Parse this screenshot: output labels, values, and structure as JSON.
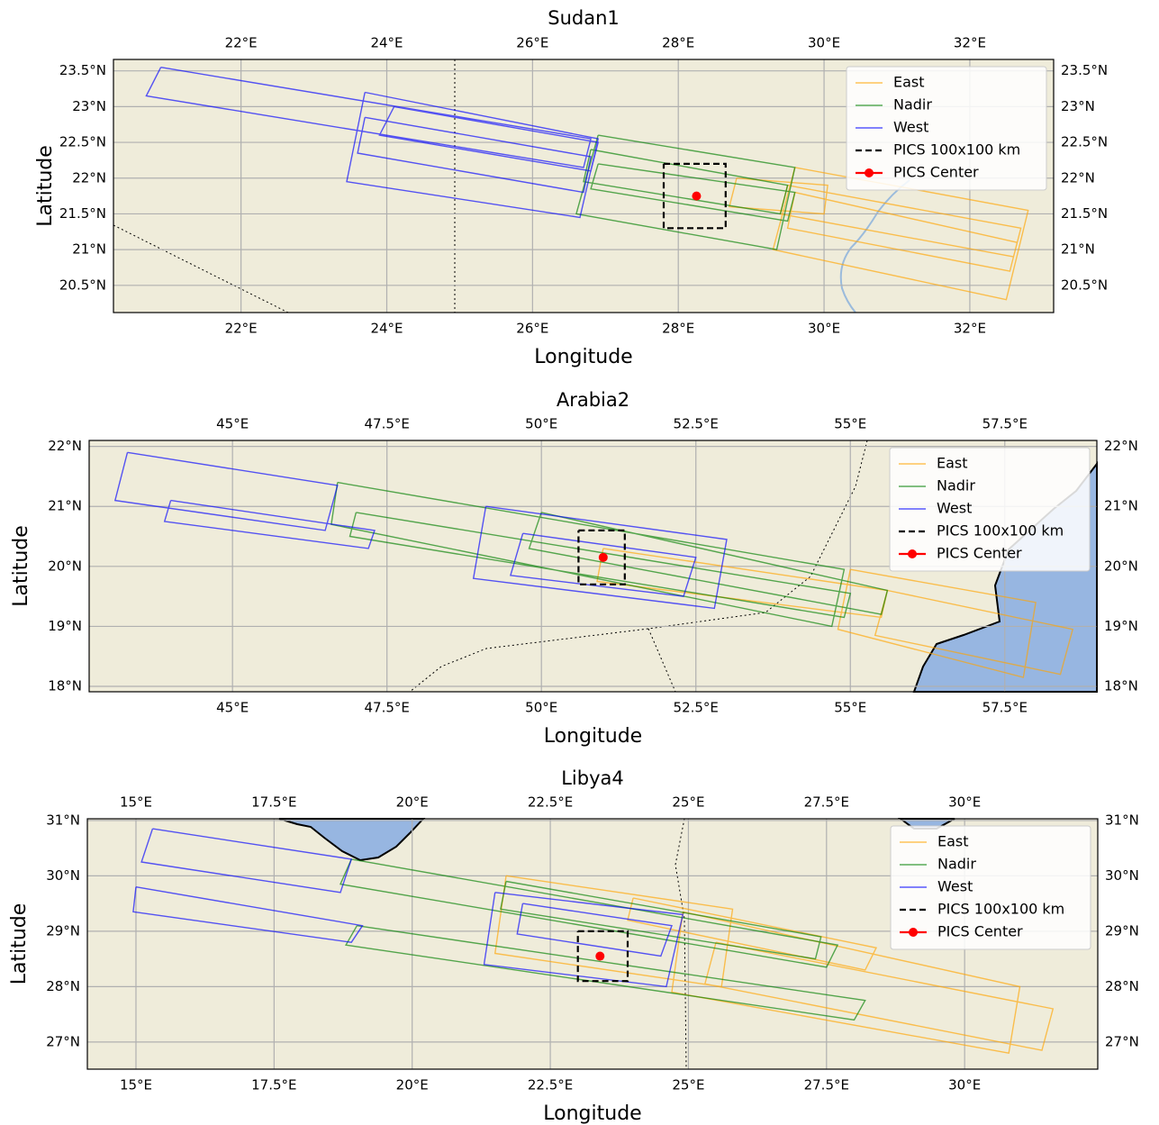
{
  "chart_data": [
    {
      "type": "map",
      "title": "Sudan1",
      "xlabel": "Longitude",
      "ylabel": "Latitude",
      "xlim": [
        20.25,
        33.15
      ],
      "ylim": [
        20.12,
        23.66
      ],
      "xticks": [
        {
          "value": 22,
          "label": "22°E"
        },
        {
          "value": 24,
          "label": "24°E"
        },
        {
          "value": 26,
          "label": "26°E"
        },
        {
          "value": 28,
          "label": "28°E"
        },
        {
          "value": 30,
          "label": "30°E"
        },
        {
          "value": 32,
          "label": "32°E"
        }
      ],
      "yticks": [
        {
          "value": 20.5,
          "label": "20.5°N"
        },
        {
          "value": 21,
          "label": "21°N"
        },
        {
          "value": 21.5,
          "label": "21.5°N"
        },
        {
          "value": 22,
          "label": "22°N"
        },
        {
          "value": 22.5,
          "label": "22.5°N"
        },
        {
          "value": 23,
          "label": "23°N"
        },
        {
          "value": 23.5,
          "label": "23.5°N"
        }
      ],
      "grid": true,
      "legend": "upper right",
      "series": [
        {
          "name": "East",
          "color": "orange",
          "x": [
            29.6,
            32.8,
            32.5,
            29.3,
            29.6,
            null,
            29.5,
            32.7,
            32.6,
            29.4,
            29.5,
            null,
            29.6,
            32.65,
            32.55,
            29.5,
            29.6,
            null,
            28.8,
            30.05,
            30.0,
            28.7,
            28.8
          ],
          "y": [
            22.15,
            21.55,
            20.3,
            21.0,
            22.15,
            null,
            21.9,
            21.3,
            20.9,
            21.5,
            21.9,
            null,
            21.8,
            21.1,
            20.7,
            21.3,
            21.8,
            null,
            22.0,
            21.9,
            21.5,
            21.6,
            22.0
          ]
        },
        {
          "name": "Nadir",
          "color": "green",
          "x": [
            26.9,
            29.6,
            29.35,
            26.6,
            26.9,
            null,
            26.8,
            29.5,
            29.4,
            26.7,
            26.8,
            null,
            26.9,
            29.6,
            29.5,
            26.8,
            26.9
          ],
          "y": [
            22.6,
            22.15,
            21.0,
            21.5,
            22.6,
            null,
            22.4,
            21.9,
            21.5,
            21.95,
            22.4,
            null,
            22.2,
            21.8,
            21.4,
            21.85,
            22.2
          ]
        },
        {
          "name": "West",
          "color": "blue",
          "x": [
            20.9,
            26.8,
            26.7,
            20.7,
            20.9,
            null,
            23.7,
            26.9,
            26.65,
            23.45,
            23.7,
            null,
            23.7,
            26.8,
            26.7,
            23.6,
            23.7,
            null,
            24.1,
            26.9,
            26.8,
            23.9,
            24.1
          ],
          "y": [
            23.55,
            22.55,
            22.15,
            23.15,
            23.55,
            null,
            23.2,
            22.55,
            21.45,
            21.95,
            23.2,
            null,
            22.85,
            22.3,
            21.8,
            22.35,
            22.85,
            null,
            23.0,
            22.5,
            22.1,
            22.6,
            23.0
          ]
        },
        {
          "name": "PICS 100x100 km",
          "color": "black",
          "linestyle": "dashed",
          "x": [
            27.8,
            28.65,
            28.65,
            27.8,
            27.8
          ],
          "y": [
            22.2,
            22.2,
            21.3,
            21.3,
            22.2
          ]
        },
        {
          "name": "PICS Center",
          "color": "red",
          "marker": "o",
          "x": [
            28.25
          ],
          "y": [
            21.75
          ]
        }
      ]
    },
    {
      "type": "map",
      "title": "Arabia2",
      "xlabel": "Longitude",
      "ylabel": "Latitude",
      "xlim": [
        42.68,
        58.99
      ],
      "ylim": [
        17.91,
        22.1
      ],
      "xticks": [
        {
          "value": 45,
          "label": "45°E"
        },
        {
          "value": 47.5,
          "label": "47.5°E"
        },
        {
          "value": 50,
          "label": "50°E"
        },
        {
          "value": 52.5,
          "label": "52.5°E"
        },
        {
          "value": 55,
          "label": "55°E"
        },
        {
          "value": 57.5,
          "label": "57.5°E"
        }
      ],
      "yticks": [
        {
          "value": 18,
          "label": "18°N"
        },
        {
          "value": 19,
          "label": "19°N"
        },
        {
          "value": 20,
          "label": "20°N"
        },
        {
          "value": 21,
          "label": "21°N"
        },
        {
          "value": 22,
          "label": "22°N"
        }
      ],
      "grid": true,
      "legend": "upper right",
      "series": [
        {
          "name": "East",
          "color": "orange",
          "x": [
            55.0,
            58.0,
            57.8,
            54.8,
            55.0,
            null,
            55.6,
            58.6,
            58.4,
            55.4,
            55.6,
            null,
            51.0,
            55.6,
            55.5,
            50.9,
            51.0
          ],
          "y": [
            19.95,
            19.4,
            18.15,
            18.95,
            19.95,
            null,
            19.6,
            18.95,
            18.2,
            18.85,
            19.6,
            null,
            20.3,
            19.6,
            19.15,
            19.75,
            20.3
          ]
        },
        {
          "name": "Nadir",
          "color": "green",
          "x": [
            46.7,
            54.9,
            54.7,
            46.6,
            46.7,
            null,
            50.0,
            55.6,
            55.5,
            49.8,
            50.0,
            null,
            47.0,
            55.0,
            54.9,
            46.9,
            47.0
          ],
          "y": [
            21.4,
            19.95,
            19.0,
            20.7,
            21.4,
            null,
            20.9,
            19.6,
            19.2,
            20.3,
            20.9,
            null,
            20.9,
            19.55,
            19.15,
            20.5,
            20.9
          ]
        },
        {
          "name": "West",
          "color": "blue",
          "x": [
            43.3,
            46.7,
            46.5,
            43.1,
            43.3,
            null,
            44.0,
            47.3,
            47.2,
            43.9,
            44.0,
            null,
            49.1,
            53.0,
            52.8,
            48.9,
            49.1,
            null,
            49.7,
            52.5,
            52.3,
            49.5,
            49.7
          ],
          "y": [
            21.9,
            21.35,
            20.6,
            21.1,
            21.9,
            null,
            21.1,
            20.6,
            20.3,
            20.75,
            21.1,
            null,
            21.0,
            20.45,
            19.3,
            19.8,
            21.0,
            null,
            20.55,
            20.15,
            19.5,
            19.85,
            20.55
          ]
        },
        {
          "name": "PICS 100x100 km",
          "color": "black",
          "linestyle": "dashed",
          "x": [
            50.6,
            51.35,
            51.35,
            50.6,
            50.6
          ],
          "y": [
            20.6,
            20.6,
            19.7,
            19.7,
            20.6
          ]
        },
        {
          "name": "PICS Center",
          "color": "red",
          "marker": "o",
          "x": [
            51.0
          ],
          "y": [
            20.15
          ]
        }
      ]
    },
    {
      "type": "map",
      "title": "Libya4",
      "xlabel": "Longitude",
      "ylabel": "Latitude",
      "xlim": [
        14.12,
        32.41
      ],
      "ylim": [
        26.51,
        31.03
      ],
      "xticks": [
        {
          "value": 15,
          "label": "15°E"
        },
        {
          "value": 17.5,
          "label": "17.5°E"
        },
        {
          "value": 20,
          "label": "20°E"
        },
        {
          "value": 22.5,
          "label": "22.5°E"
        },
        {
          "value": 25,
          "label": "25°E"
        },
        {
          "value": 27.5,
          "label": "27.5°E"
        },
        {
          "value": 30,
          "label": "30°E"
        }
      ],
      "yticks": [
        {
          "value": 27,
          "label": "27°N"
        },
        {
          "value": 28,
          "label": "28°N"
        },
        {
          "value": 29,
          "label": "29°N"
        },
        {
          "value": 30,
          "label": "30°N"
        },
        {
          "value": 31,
          "label": "31°N"
        }
      ],
      "grid": true,
      "legend": "upper right",
      "series": [
        {
          "name": "East",
          "color": "orange",
          "x": [
            24.9,
            31.0,
            30.8,
            24.7,
            24.9,
            null,
            24.0,
            28.4,
            28.2,
            23.9,
            24.0,
            null,
            25.5,
            31.6,
            31.4,
            25.3,
            25.5,
            null,
            21.7,
            25.8,
            25.6,
            21.5,
            21.7
          ],
          "y": [
            29.35,
            28.0,
            26.8,
            27.9,
            29.35,
            null,
            29.6,
            28.7,
            28.3,
            29.2,
            29.6,
            null,
            28.8,
            27.6,
            26.85,
            28.05,
            28.8,
            null,
            30.0,
            29.4,
            28.0,
            28.6,
            30.0
          ]
        },
        {
          "name": "Nadir",
          "color": "green",
          "x": [
            18.9,
            27.7,
            27.5,
            18.7,
            18.9,
            null,
            19.0,
            28.2,
            28.0,
            18.8,
            19.0,
            null,
            21.7,
            27.4,
            27.3,
            21.6,
            21.7
          ],
          "y": [
            30.3,
            28.75,
            28.35,
            29.85,
            30.3,
            null,
            29.1,
            27.75,
            27.4,
            28.75,
            29.1,
            null,
            29.9,
            28.9,
            28.5,
            29.4,
            29.9
          ]
        },
        {
          "name": "West",
          "color": "blue",
          "x": [
            15.3,
            18.9,
            18.7,
            15.1,
            15.3,
            null,
            15.0,
            19.1,
            18.9,
            14.95,
            15.0,
            null,
            21.5,
            24.9,
            24.6,
            21.3,
            21.5,
            null,
            22.0,
            24.7,
            24.5,
            21.9,
            22.0
          ],
          "y": [
            30.85,
            30.3,
            29.7,
            30.25,
            30.85,
            null,
            29.8,
            29.1,
            28.8,
            29.35,
            29.8,
            null,
            29.7,
            29.3,
            28.0,
            28.4,
            29.7,
            null,
            29.5,
            29.1,
            28.55,
            28.95,
            29.5
          ]
        },
        {
          "name": "PICS 100x100 km",
          "color": "black",
          "linestyle": "dashed",
          "x": [
            23.0,
            23.9,
            23.9,
            23.0,
            23.0
          ],
          "y": [
            29.0,
            29.0,
            28.1,
            28.1,
            29.0
          ]
        },
        {
          "name": "PICS Center",
          "color": "red",
          "marker": "o",
          "x": [
            23.4
          ],
          "y": [
            28.55
          ]
        }
      ]
    }
  ]
}
